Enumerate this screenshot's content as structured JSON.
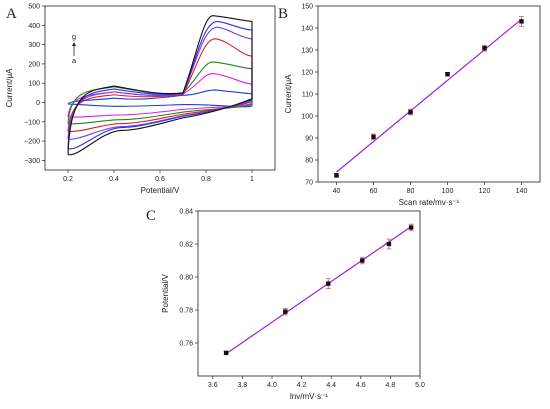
{
  "figure": {
    "colors": {
      "axis": "#222222",
      "fit_line": "#9b1fd8",
      "error_bar": "#e0506a",
      "marker": "#111111"
    }
  },
  "chart_data": [
    {
      "panel": "A",
      "type": "line",
      "xlabel": "Potential/V",
      "ylabel": "Current/μA",
      "xlim": [
        0.1,
        1.1
      ],
      "ylim": [
        -350,
        500
      ],
      "xticks": [
        0.2,
        0.4,
        0.6,
        0.8,
        1.0
      ],
      "yticks": [
        -300,
        -200,
        -100,
        0,
        100,
        200,
        300,
        400,
        500
      ],
      "annotation": {
        "top": "g",
        "bottom": "a"
      },
      "series": [
        {
          "color": "#1f3fd6",
          "anodic_peak": [
            0.84,
            65
          ],
          "cathodic_trough": [
            0.42,
            -20
          ],
          "x_start": 0.2,
          "x_end": 1.0,
          "start_current": 8,
          "end_current": 45,
          "start_bottom": -8,
          "end_bottom": -18
        },
        {
          "color": "#e11ee8",
          "anodic_peak": [
            0.83,
            150
          ],
          "cathodic_trough": [
            0.41,
            -65
          ],
          "x_start": 0.2,
          "x_end": 1.0,
          "start_current": 30,
          "end_current": 95,
          "start_bottom": -75,
          "end_bottom": -5
        },
        {
          "color": "#1b8a1b",
          "anodic_peak": [
            0.83,
            210
          ],
          "cathodic_trough": [
            0.41,
            -90
          ],
          "x_start": 0.2,
          "x_end": 1.0,
          "start_current": 48,
          "end_current": 175,
          "start_bottom": -110,
          "end_bottom": -10
        },
        {
          "color": "#e02020",
          "anodic_peak": [
            0.84,
            330
          ],
          "cathodic_trough": [
            0.42,
            -110
          ],
          "x_start": 0.2,
          "x_end": 1.0,
          "start_current": 20,
          "end_current": 240,
          "start_bottom": -150,
          "end_bottom": 5
        },
        {
          "color": "#7a3fe0",
          "anodic_peak": [
            0.85,
            390
          ],
          "cathodic_trough": [
            0.43,
            -125
          ],
          "x_start": 0.2,
          "x_end": 1.0,
          "start_current": 30,
          "end_current": 330,
          "start_bottom": -190,
          "end_bottom": 10
        },
        {
          "color": "#3030f0",
          "anodic_peak": [
            0.85,
            420
          ],
          "cathodic_trough": [
            0.43,
            -130
          ],
          "x_start": 0.2,
          "x_end": 1.0,
          "start_current": 40,
          "end_current": 375,
          "start_bottom": -240,
          "end_bottom": 15
        },
        {
          "color": "#111111",
          "anodic_peak": [
            0.83,
            450
          ],
          "cathodic_trough": [
            0.43,
            -145
          ],
          "x_start": 0.2,
          "x_end": 1.0,
          "start_current": 50,
          "end_current": 420,
          "start_bottom": -270,
          "end_bottom": 20
        }
      ]
    },
    {
      "panel": "B",
      "type": "scatter",
      "xlabel": "Scan rate/mv·s⁻¹",
      "ylabel": "Current/μA",
      "xlim": [
        30,
        150
      ],
      "ylim": [
        70,
        150
      ],
      "xticks": [
        40,
        60,
        80,
        100,
        120,
        140
      ],
      "yticks": [
        70,
        80,
        90,
        100,
        110,
        120,
        130,
        140,
        150
      ],
      "x": [
        40,
        60,
        80,
        100,
        120,
        140
      ],
      "y": [
        73,
        90.5,
        101.8,
        119,
        130.8,
        143
      ],
      "yerr": [
        0.8,
        1.3,
        1.3,
        0.8,
        1.3,
        2.2
      ],
      "fit": {
        "x": [
          40,
          140
        ],
        "y": [
          74.5,
          144
        ]
      }
    },
    {
      "panel": "C",
      "type": "scatter",
      "xlabel": "lnv/mV·s⁻¹",
      "ylabel": "Potential/V",
      "xlim": [
        3.5,
        5.0
      ],
      "ylim": [
        0.74,
        0.84
      ],
      "xticks": [
        3.6,
        3.8,
        4.0,
        4.2,
        4.4,
        4.6,
        4.8,
        5.0
      ],
      "yticks": [
        0.76,
        0.78,
        0.8,
        0.82,
        0.84
      ],
      "x": [
        3.69,
        4.09,
        4.38,
        4.61,
        4.79,
        4.94
      ],
      "y": [
        0.754,
        0.779,
        0.796,
        0.81,
        0.82,
        0.83
      ],
      "yerr": [
        0.001,
        0.002,
        0.003,
        0.002,
        0.003,
        0.002
      ],
      "fit": {
        "x": [
          3.69,
          4.94
        ],
        "y": [
          0.7535,
          0.8305
        ]
      }
    }
  ]
}
